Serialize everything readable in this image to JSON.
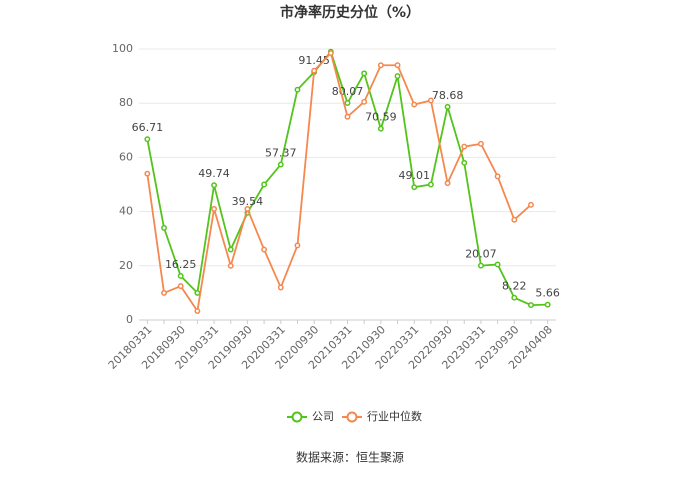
{
  "chart_data": {
    "type": "line",
    "title": "市净率历史分位（%）",
    "categories": [
      "20180331",
      null,
      "20180930",
      null,
      "20190331",
      null,
      "20190930",
      null,
      "20200331",
      null,
      "20200930",
      null,
      "20210331",
      null,
      "20210930",
      null,
      "20220331",
      null,
      "20220930",
      null,
      "20230331",
      null,
      "20230930",
      null,
      "20240408"
    ],
    "series": [
      {
        "name": "公司",
        "color": "#52c41a",
        "values": [
          66.71,
          34,
          16.25,
          10,
          49.74,
          26,
          39.54,
          50,
          57.37,
          85,
          91.45,
          99,
          80.07,
          91,
          70.59,
          90,
          49.01,
          50,
          78.68,
          58,
          20.07,
          20.5,
          8.22,
          5.5,
          5.66
        ],
        "value_labels": [
          "66.71",
          null,
          "16.25",
          null,
          "49.74",
          null,
          "39.54",
          null,
          "57.37",
          null,
          "91.45",
          null,
          "80.07",
          null,
          "70.59",
          null,
          "49.01",
          null,
          "78.68",
          null,
          "20.07",
          null,
          "8.22",
          null,
          "5.66"
        ]
      },
      {
        "name": "行业中位数",
        "color": "#f5884e",
        "values": [
          54,
          10,
          12.5,
          3.3,
          41,
          20,
          41,
          26,
          12,
          27.5,
          92,
          98.5,
          75,
          80.5,
          94,
          94,
          79.5,
          81,
          50.5,
          64,
          65,
          53,
          37,
          42.5,
          null
        ]
      }
    ],
    "ylim": [
      0,
      100
    ],
    "yticks": [
      0,
      20,
      40,
      60,
      80,
      100
    ],
    "grid": true,
    "source": "数据来源：恒生聚源"
  }
}
